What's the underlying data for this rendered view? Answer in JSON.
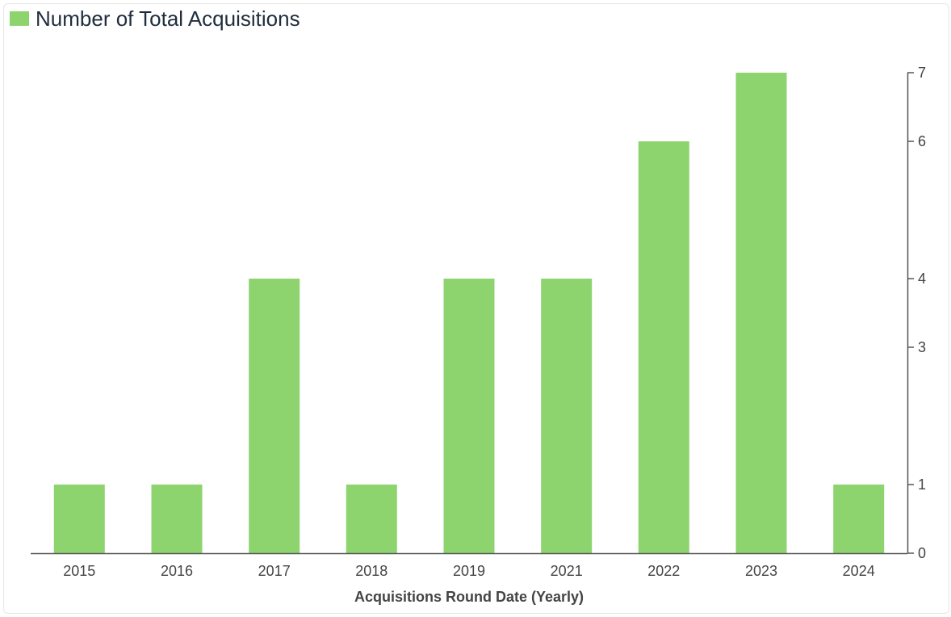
{
  "chart_data": {
    "type": "bar",
    "title": "",
    "legend": {
      "label": "Number of Total Acquisitions",
      "position": "top-left"
    },
    "xlabel": "Acquisitions Round Date (Yearly)",
    "ylabel": "",
    "categories": [
      "2015",
      "2016",
      "2017",
      "2018",
      "2019",
      "2021",
      "2022",
      "2023",
      "2024"
    ],
    "series": [
      {
        "name": "Number of Total Acquisitions",
        "values": [
          1,
          1,
          4,
          1,
          4,
          4,
          6,
          7,
          1
        ]
      }
    ],
    "y_ticks": [
      0,
      1,
      3,
      4,
      6,
      7
    ],
    "ylim": [
      0,
      7
    ],
    "y_axis_side": "right",
    "grid": false,
    "colors": {
      "bar": "#8dd46f",
      "axis": "#555555"
    }
  }
}
